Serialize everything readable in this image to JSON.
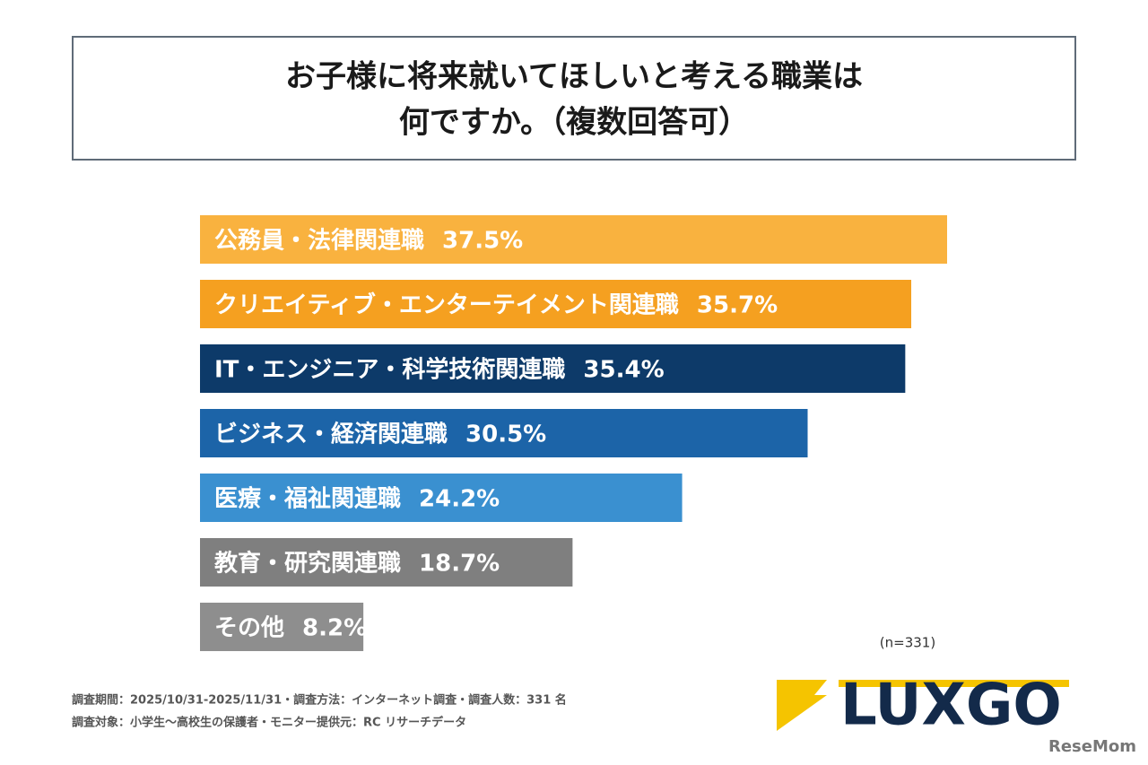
{
  "chart_data": {
    "type": "bar",
    "orientation": "horizontal",
    "title": [
      "お子様に将来就いてほしいと考える職業は",
      "何ですか。（複数回答可）"
    ],
    "categories": [
      "公務員・法律関連職",
      "クリエイティブ・エンターテイメント関連職",
      "IT・エンジニア・科学技術関連職",
      "ビジネス・経済関連職",
      "医療・福祉関連職",
      "教育・研究関連職",
      "その他"
    ],
    "values": [
      37.5,
      35.7,
      35.4,
      30.5,
      24.2,
      18.7,
      8.2
    ],
    "value_labels": [
      "37.5%",
      "35.7%",
      "35.4%",
      "30.5%",
      "24.2%",
      "18.7%",
      "8.2%"
    ],
    "colors": [
      "#f9b23f",
      "#f5a020",
      "#0d3a69",
      "#1c64a8",
      "#3a90d0",
      "#7f7f7f",
      "#8e8e8e"
    ],
    "sample_note": "(n=331)",
    "footnotes": [
      "調査期間：2025/10/31-2025/11/31・調査方法：インターネット調査・調査人数：331 名",
      "調査対象：小学生〜高校生の保護者・モニター提供元：RC リサーチデータ"
    ],
    "logo": "LUXGO",
    "watermark": "ReseMom"
  }
}
